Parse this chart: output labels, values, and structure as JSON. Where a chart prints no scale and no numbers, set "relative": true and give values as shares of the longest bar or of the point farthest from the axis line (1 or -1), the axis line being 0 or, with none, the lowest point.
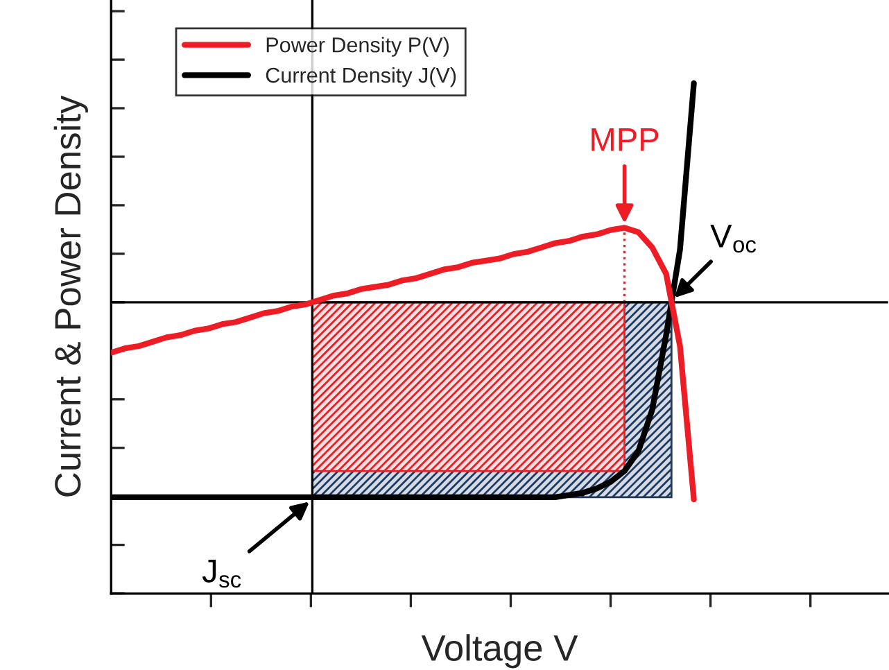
{
  "chart_data": {
    "type": "line",
    "relative": true,
    "xlabel": "Voltage V",
    "ylabel": "Current & Power Density",
    "categories": [
      null,
      null,
      null,
      null,
      null,
      null,
      null,
      null,
      null,
      null,
      null,
      null,
      null,
      null,
      null,
      null,
      null,
      null,
      null,
      null,
      null,
      null,
      null,
      null,
      null,
      null,
      null,
      null,
      null,
      null,
      null,
      null,
      null,
      null,
      null,
      null,
      null,
      null,
      null,
      null,
      null,
      null,
      null,
      null,
      null,
      null,
      null,
      null,
      null,
      null,
      null,
      null,
      null,
      null,
      null,
      null,
      null
    ],
    "series": [
      {
        "name": "Power Density P(V)",
        "color": "#ee1c25",
        "values": [
          -0.23,
          -0.21,
          -0.2,
          -0.18,
          -0.16,
          -0.15,
          -0.13,
          -0.12,
          -0.1,
          -0.09,
          -0.07,
          -0.05,
          -0.04,
          -0.02,
          -0.01,
          0.01,
          0.03,
          0.04,
          0.06,
          0.07,
          0.08,
          0.1,
          0.11,
          0.13,
          0.15,
          0.16,
          0.18,
          0.19,
          0.2,
          0.22,
          0.23,
          0.25,
          0.27,
          0.28,
          0.3,
          0.31,
          0.33,
          0.34,
          0.32,
          0.25,
          0.13,
          -0.2,
          -0.9,
          null,
          null,
          null,
          null,
          null,
          null,
          null,
          null,
          null,
          null,
          null,
          null,
          null,
          null
        ]
      },
      {
        "name": "Current Density J(V)",
        "color": "#000000",
        "values": [
          -0.89,
          -0.89,
          -0.89,
          -0.89,
          -0.89,
          -0.89,
          -0.89,
          -0.89,
          -0.89,
          -0.89,
          -0.89,
          -0.89,
          -0.89,
          -0.89,
          -0.89,
          -0.89,
          -0.89,
          -0.89,
          -0.89,
          -0.89,
          -0.89,
          -0.89,
          -0.89,
          -0.89,
          -0.89,
          -0.89,
          -0.89,
          -0.89,
          -0.89,
          -0.89,
          -0.89,
          -0.89,
          -0.89,
          -0.88,
          -0.87,
          -0.85,
          -0.82,
          -0.77,
          -0.68,
          -0.49,
          -0.15,
          0.24,
          1.0,
          null,
          null,
          null,
          null,
          null,
          null,
          null,
          null,
          null,
          null,
          null,
          null,
          null,
          null
        ]
      }
    ],
    "ref_lines": [
      {
        "axis": "y",
        "value": 0,
        "color": "#000000"
      }
    ],
    "annotations": [
      "MPP",
      "V$_{oc}$",
      "J$_{sc}$"
    ],
    "legend": "top left",
    "line_style": "solid",
    "grid": false,
    "tick_labels": false
  }
}
